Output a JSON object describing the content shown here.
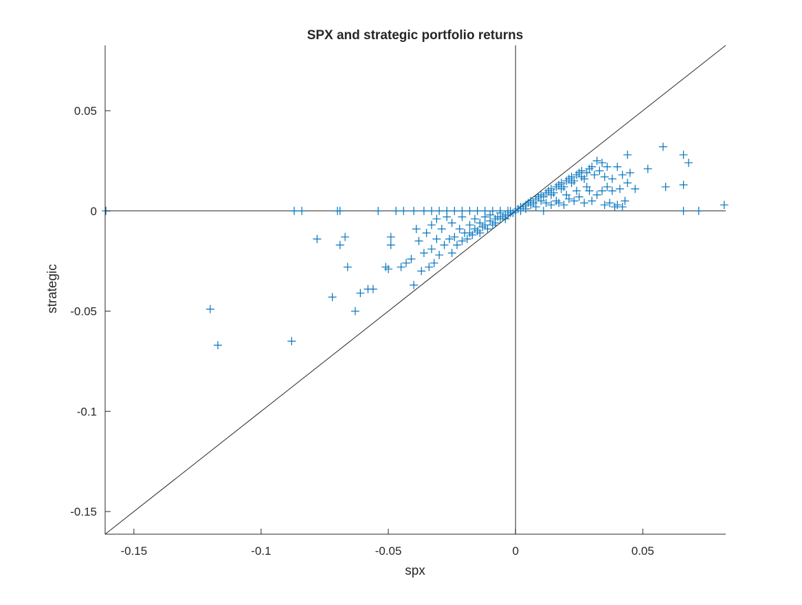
{
  "chart_data": {
    "type": "scatter",
    "title": "SPX and strategic portfolio returns",
    "xlabel": "spx",
    "ylabel": "strategic",
    "xlim": [
      -0.1613,
      0.0826
    ],
    "ylim": [
      -0.1613,
      0.0826
    ],
    "x_ticks": [
      -0.15,
      -0.1,
      -0.05,
      0,
      0.05
    ],
    "x_tick_labels": [
      "-0.15",
      "-0.1",
      "-0.05",
      "0",
      "0.05"
    ],
    "y_ticks": [
      -0.15,
      -0.1,
      -0.05,
      0,
      0.05
    ],
    "y_tick_labels": [
      "-0.15",
      "-0.1",
      "-0.05",
      "0",
      "0.05"
    ],
    "grid": false,
    "marker": "+",
    "marker_color": "#0072BD",
    "reference_lines": [
      {
        "kind": "identity",
        "description": "y = x"
      },
      {
        "kind": "horizontal",
        "y": 0
      },
      {
        "kind": "vertical",
        "x": 0
      }
    ],
    "series": [
      {
        "points": [
          [
            -0.161,
            0.0
          ],
          [
            -0.087,
            0.0
          ],
          [
            -0.084,
            0.0
          ],
          [
            -0.07,
            0.0
          ],
          [
            -0.069,
            0.0
          ],
          [
            -0.054,
            0.0
          ],
          [
            -0.047,
            0.0
          ],
          [
            -0.044,
            0.0
          ],
          [
            -0.04,
            0.0
          ],
          [
            -0.12,
            -0.049
          ],
          [
            -0.117,
            -0.067
          ],
          [
            -0.088,
            -0.065
          ],
          [
            -0.078,
            -0.014
          ],
          [
            -0.072,
            -0.043
          ],
          [
            -0.069,
            -0.017
          ],
          [
            -0.067,
            -0.013
          ],
          [
            -0.066,
            -0.028
          ],
          [
            -0.063,
            -0.05
          ],
          [
            -0.061,
            -0.041
          ],
          [
            -0.058,
            -0.039
          ],
          [
            -0.056,
            -0.039
          ],
          [
            -0.051,
            -0.028
          ],
          [
            -0.05,
            -0.029
          ],
          [
            -0.049,
            -0.013
          ],
          [
            -0.049,
            -0.017
          ],
          [
            -0.045,
            -0.028
          ],
          [
            -0.043,
            -0.026
          ],
          [
            -0.041,
            -0.024
          ],
          [
            -0.04,
            -0.037
          ],
          [
            -0.039,
            -0.009
          ],
          [
            -0.038,
            -0.015
          ],
          [
            -0.037,
            -0.03
          ],
          [
            -0.036,
            -0.021
          ],
          [
            -0.035,
            -0.011
          ],
          [
            -0.034,
            -0.028
          ],
          [
            -0.033,
            -0.007
          ],
          [
            -0.033,
            -0.019
          ],
          [
            -0.032,
            -0.026
          ],
          [
            -0.031,
            -0.014
          ],
          [
            -0.031,
            -0.004
          ],
          [
            -0.03,
            -0.022
          ],
          [
            -0.029,
            -0.009
          ],
          [
            -0.028,
            -0.017
          ],
          [
            -0.027,
            -0.003
          ],
          [
            -0.026,
            -0.014
          ],
          [
            -0.025,
            -0.021
          ],
          [
            -0.025,
            -0.006
          ],
          [
            -0.024,
            -0.013
          ],
          [
            -0.023,
            -0.017
          ],
          [
            -0.022,
            -0.009
          ],
          [
            -0.021,
            -0.003
          ],
          [
            -0.021,
            -0.015
          ],
          [
            -0.02,
            -0.011
          ],
          [
            -0.019,
            -0.014
          ],
          [
            -0.018,
            -0.007
          ],
          [
            -0.018,
            -0.011
          ],
          [
            -0.017,
            -0.012
          ],
          [
            -0.016,
            -0.004
          ],
          [
            -0.016,
            -0.009
          ],
          [
            -0.015,
            -0.01
          ],
          [
            -0.014,
            -0.006
          ],
          [
            -0.014,
            -0.011
          ],
          [
            -0.013,
            -0.008
          ],
          [
            -0.012,
            -0.003
          ],
          [
            -0.012,
            -0.007
          ],
          [
            -0.011,
            -0.009
          ],
          [
            -0.01,
            -0.005
          ],
          [
            -0.01,
            -0.002
          ],
          [
            -0.009,
            -0.007
          ],
          [
            -0.008,
            -0.004
          ],
          [
            -0.008,
            -0.006
          ],
          [
            -0.007,
            -0.003
          ],
          [
            -0.006,
            -0.004
          ],
          [
            -0.006,
            -0.001
          ],
          [
            -0.005,
            -0.003
          ],
          [
            -0.004,
            -0.002
          ],
          [
            -0.004,
            -0.004
          ],
          [
            -0.003,
            -0.002
          ],
          [
            -0.002,
            -0.001
          ],
          [
            -0.002,
            0.0
          ],
          [
            -0.001,
            -0.001
          ],
          [
            -0.036,
            0.0
          ],
          [
            -0.033,
            0.0
          ],
          [
            -0.03,
            0.0
          ],
          [
            -0.027,
            0.0
          ],
          [
            -0.024,
            0.0
          ],
          [
            -0.021,
            0.0
          ],
          [
            -0.018,
            0.0
          ],
          [
            -0.015,
            0.0
          ],
          [
            -0.012,
            0.0
          ],
          [
            -0.009,
            0.0
          ],
          [
            -0.006,
            0.0
          ],
          [
            -0.003,
            0.0
          ],
          [
            0.0,
            0.0
          ],
          [
            0.001,
            0.001
          ],
          [
            0.002,
            0.0
          ],
          [
            0.002,
            0.002
          ],
          [
            0.003,
            0.002
          ],
          [
            0.004,
            0.003
          ],
          [
            0.004,
            0.001
          ],
          [
            0.005,
            0.004
          ],
          [
            0.006,
            0.003
          ],
          [
            0.006,
            0.005
          ],
          [
            0.007,
            0.004
          ],
          [
            0.008,
            0.006
          ],
          [
            0.008,
            0.002
          ],
          [
            0.009,
            0.007
          ],
          [
            0.01,
            0.005
          ],
          [
            0.01,
            0.008
          ],
          [
            0.011,
            0.007
          ],
          [
            0.012,
            0.009
          ],
          [
            0.012,
            0.004
          ],
          [
            0.013,
            0.01
          ],
          [
            0.014,
            0.008
          ],
          [
            0.014,
            0.011
          ],
          [
            0.015,
            0.009
          ],
          [
            0.016,
            0.012
          ],
          [
            0.016,
            0.005
          ],
          [
            0.017,
            0.013
          ],
          [
            0.018,
            0.011
          ],
          [
            0.018,
            0.014
          ],
          [
            0.019,
            0.012
          ],
          [
            0.02,
            0.015
          ],
          [
            0.02,
            0.008
          ],
          [
            0.021,
            0.016
          ],
          [
            0.022,
            0.014
          ],
          [
            0.022,
            0.017
          ],
          [
            0.023,
            0.015
          ],
          [
            0.024,
            0.018
          ],
          [
            0.024,
            0.01
          ],
          [
            0.025,
            0.019
          ],
          [
            0.026,
            0.017
          ],
          [
            0.026,
            0.02
          ],
          [
            0.027,
            0.016
          ],
          [
            0.028,
            0.019
          ],
          [
            0.028,
            0.012
          ],
          [
            0.029,
            0.021
          ],
          [
            0.011,
            0.0
          ],
          [
            0.014,
            0.003
          ],
          [
            0.017,
            0.004
          ],
          [
            0.019,
            0.003
          ],
          [
            0.021,
            0.006
          ],
          [
            0.023,
            0.005
          ],
          [
            0.025,
            0.007
          ],
          [
            0.027,
            0.004
          ],
          [
            0.029,
            0.01
          ],
          [
            0.03,
            0.022
          ],
          [
            0.031,
            0.018
          ],
          [
            0.032,
            0.025
          ],
          [
            0.033,
            0.02
          ],
          [
            0.034,
            0.01
          ],
          [
            0.034,
            0.024
          ],
          [
            0.035,
            0.017
          ],
          [
            0.036,
            0.012
          ],
          [
            0.036,
            0.022
          ],
          [
            0.037,
            0.004
          ],
          [
            0.038,
            0.016
          ],
          [
            0.039,
            0.002
          ],
          [
            0.04,
            0.022
          ],
          [
            0.041,
            0.011
          ],
          [
            0.042,
            0.018
          ],
          [
            0.043,
            0.005
          ],
          [
            0.044,
            0.028
          ],
          [
            0.044,
            0.014
          ],
          [
            0.042,
            0.002
          ],
          [
            0.045,
            0.019
          ],
          [
            0.047,
            0.011
          ],
          [
            0.052,
            0.021
          ],
          [
            0.058,
            0.032
          ],
          [
            0.059,
            0.012
          ],
          [
            0.066,
            0.028
          ],
          [
            0.066,
            0.013
          ],
          [
            0.068,
            0.024
          ],
          [
            0.066,
            0.0
          ],
          [
            0.072,
            0.0
          ],
          [
            0.082,
            0.003
          ],
          [
            0.03,
            0.005
          ],
          [
            0.032,
            0.008
          ],
          [
            0.035,
            0.003
          ],
          [
            0.038,
            0.01
          ],
          [
            0.04,
            0.003
          ]
        ]
      }
    ]
  }
}
